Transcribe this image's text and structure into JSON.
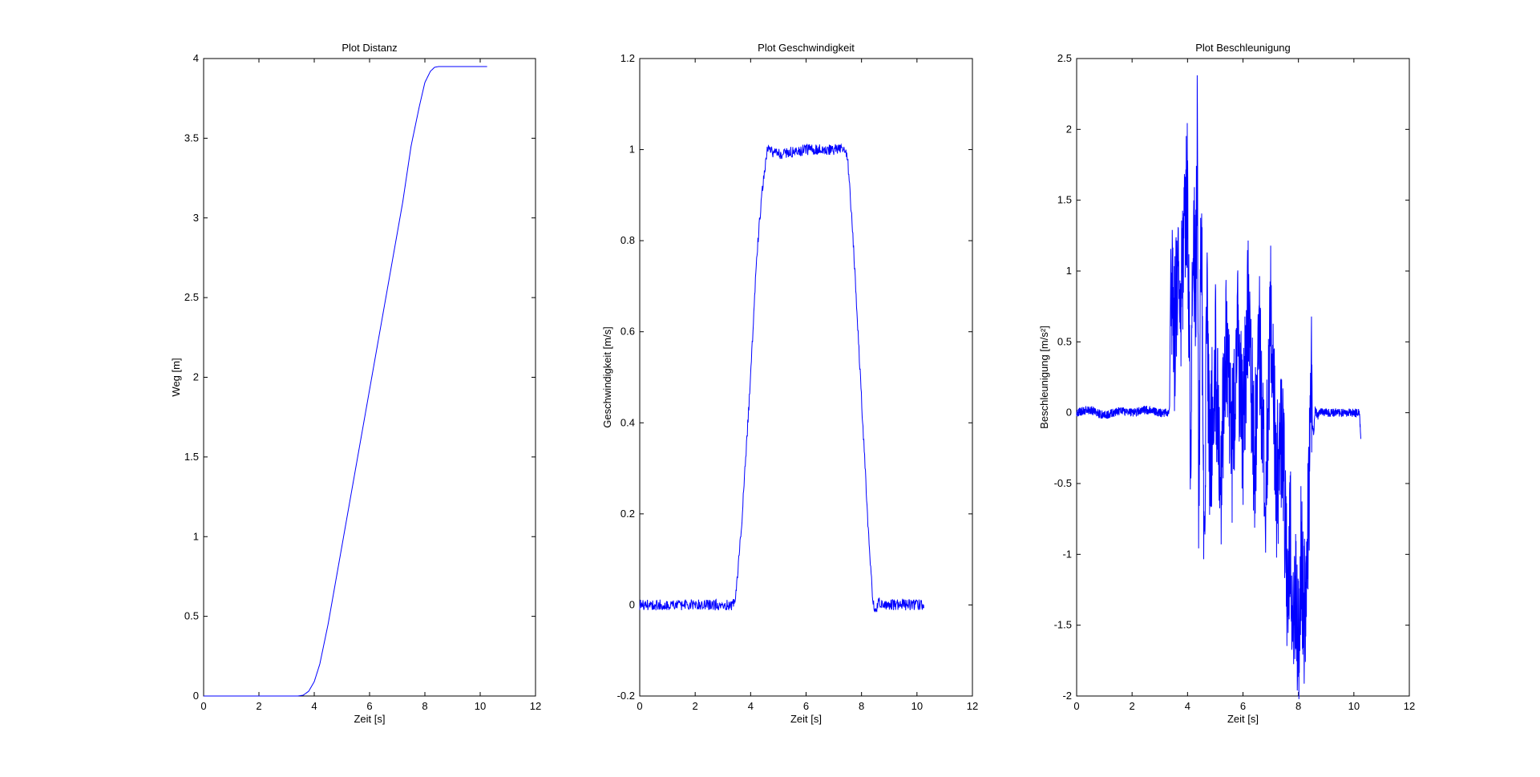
{
  "chart_data": [
    {
      "type": "line",
      "title": "Plot Distanz",
      "xlabel": "Zeit [s]",
      "ylabel": "Weg [m]",
      "xlim": [
        0,
        12
      ],
      "ylim": [
        0,
        4
      ],
      "xticks": [
        0,
        2,
        4,
        6,
        8,
        10,
        12
      ],
      "yticks": [
        0,
        0.5,
        1,
        1.5,
        2,
        2.5,
        3,
        3.5,
        4
      ],
      "grid": false,
      "series": [
        {
          "color": "#0000ff",
          "noise": 0,
          "x": [
            0,
            3.4,
            3.6,
            3.8,
            4.0,
            4.2,
            4.5,
            7.2,
            7.5,
            7.8,
            8.0,
            8.2,
            8.35,
            8.5,
            10.25
          ],
          "y": [
            0,
            0,
            0.005,
            0.03,
            0.09,
            0.2,
            0.45,
            3.1,
            3.45,
            3.7,
            3.85,
            3.92,
            3.945,
            3.95,
            3.95
          ]
        }
      ]
    },
    {
      "type": "line",
      "title": "Plot Geschwindigkeit",
      "xlabel": "Zeit [s]",
      "ylabel": "Geschwindigkeit [m/s]",
      "xlim": [
        0,
        12
      ],
      "ylim": [
        -0.2,
        1.2
      ],
      "xticks": [
        0,
        2,
        4,
        6,
        8,
        10,
        12
      ],
      "yticks": [
        -0.2,
        0,
        0.2,
        0.4,
        0.6,
        0.8,
        1,
        1.2
      ],
      "grid": false,
      "series": [
        {
          "color": "#0000ff",
          "noise": 0.012,
          "x": [
            0,
            3.35,
            3.45,
            3.7,
            4.0,
            4.2,
            4.4,
            4.6,
            5.0,
            6.0,
            7.0,
            7.4,
            7.5,
            7.7,
            8.0,
            8.3,
            8.4,
            8.5,
            8.6,
            8.8,
            10.25
          ],
          "y": [
            0,
            0,
            0.01,
            0.2,
            0.5,
            0.75,
            0.9,
            1.0,
            0.99,
            1.0,
            1.0,
            1.0,
            0.98,
            0.8,
            0.45,
            0.1,
            0.02,
            -0.02,
            0.005,
            0,
            0
          ]
        }
      ]
    },
    {
      "type": "line",
      "title": "Plot Beschleunigung",
      "xlabel": "Zeit [s]",
      "ylabel": "Beschleunigung [m/s²]",
      "xlim": [
        0,
        12
      ],
      "ylim": [
        -2,
        2.5
      ],
      "xticks": [
        0,
        2,
        4,
        6,
        8,
        10,
        12
      ],
      "yticks": [
        -2,
        -1.5,
        -1,
        -0.5,
        0,
        0.5,
        1,
        1.5,
        2,
        2.5
      ],
      "grid": false,
      "series": [
        {
          "color": "#0000ff",
          "noise": 0.03,
          "x": [
            0,
            0.5,
            1.0,
            1.5,
            2.0,
            2.5,
            3.0,
            3.35,
            3.4,
            3.5,
            3.6,
            3.8,
            4.0,
            4.1,
            4.2,
            4.3,
            4.35,
            4.4,
            4.5,
            4.6,
            4.7,
            4.8,
            5.0,
            5.2,
            5.4,
            5.6,
            5.8,
            6.0,
            6.2,
            6.4,
            6.6,
            6.8,
            7.0,
            7.2,
            7.4,
            7.5,
            7.6,
            7.7,
            7.8,
            7.9,
            8.0,
            8.1,
            8.2,
            8.3,
            8.4,
            8.45,
            8.5,
            8.55,
            8.6,
            8.7,
            8.8,
            9.0,
            9.5,
            10.0,
            10.2,
            10.25
          ],
          "y": [
            0,
            0.02,
            -0.02,
            0.01,
            0,
            0.02,
            0,
            0,
            1.2,
            0.4,
            0.9,
            0.8,
            1.6,
            -0.3,
            1.3,
            0.9,
            2.0,
            -0.7,
            1.4,
            -0.9,
            0.7,
            -0.4,
            0.4,
            -0.5,
            0.5,
            -0.3,
            0.6,
            -0.2,
            0.9,
            -0.4,
            0.5,
            -0.6,
            0.7,
            -0.5,
            -0.2,
            -0.6,
            -1.4,
            -0.8,
            -1.6,
            -1.2,
            -1.65,
            -1.0,
            -1.5,
            -1.1,
            -0.4,
            0.4,
            -0.1,
            -0.15,
            0.02,
            -0.02,
            0.01,
            0,
            0,
            0,
            0,
            -0.2
          ]
        }
      ]
    }
  ]
}
